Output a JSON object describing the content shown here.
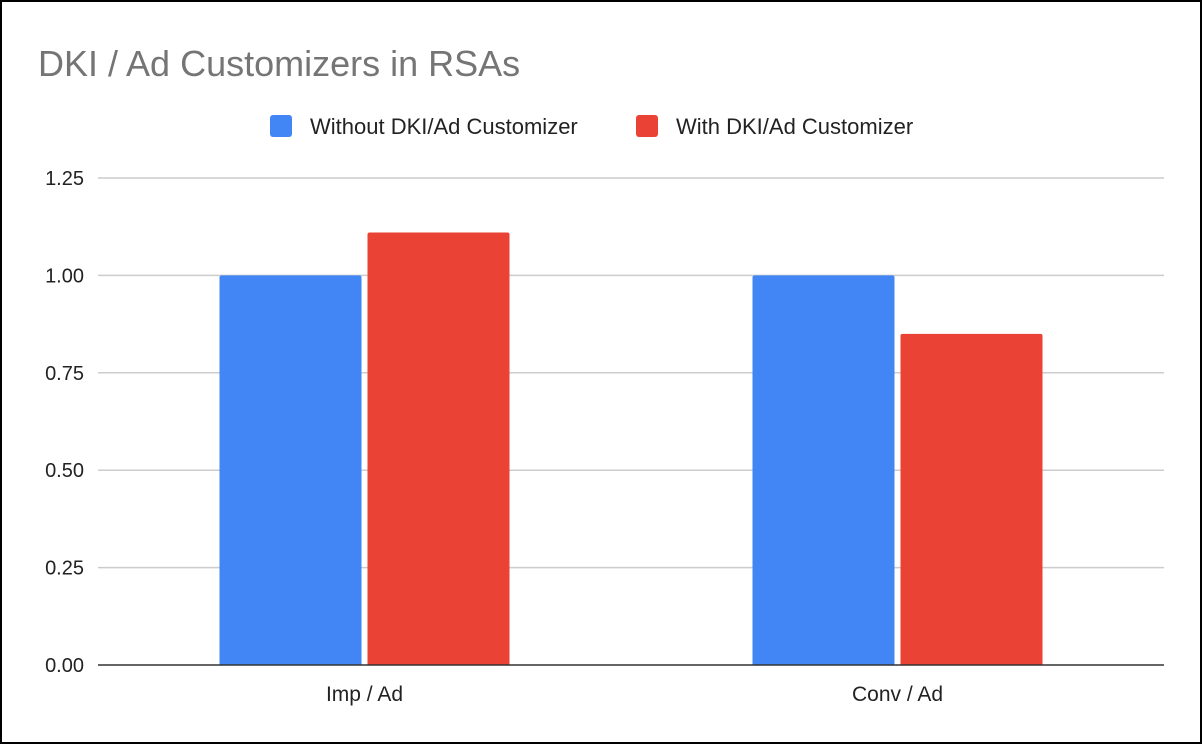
{
  "chart_data": {
    "type": "bar",
    "title": "DKI / Ad Customizers in RSAs",
    "xlabel": "",
    "ylabel": "",
    "categories": [
      "Imp / Ad",
      "Conv / Ad"
    ],
    "series": [
      {
        "name": "Without DKI/Ad Customizer",
        "values": [
          1.0,
          1.0
        ],
        "color": "#4285f4"
      },
      {
        "name": "With DKI/Ad Customizer",
        "values": [
          1.11,
          0.85
        ],
        "color": "#ea4335"
      }
    ],
    "ylim": [
      0,
      1.25
    ],
    "yticks": [
      "0.00",
      "0.25",
      "0.50",
      "0.75",
      "1.00",
      "1.25"
    ],
    "ytick_values": [
      0,
      0.25,
      0.5,
      0.75,
      1.0,
      1.25
    ],
    "grid": true,
    "legend_position": "top",
    "colors": {
      "title": "#757575",
      "text": "#222222",
      "grid": "#cccccc",
      "axis": "#333333"
    }
  }
}
